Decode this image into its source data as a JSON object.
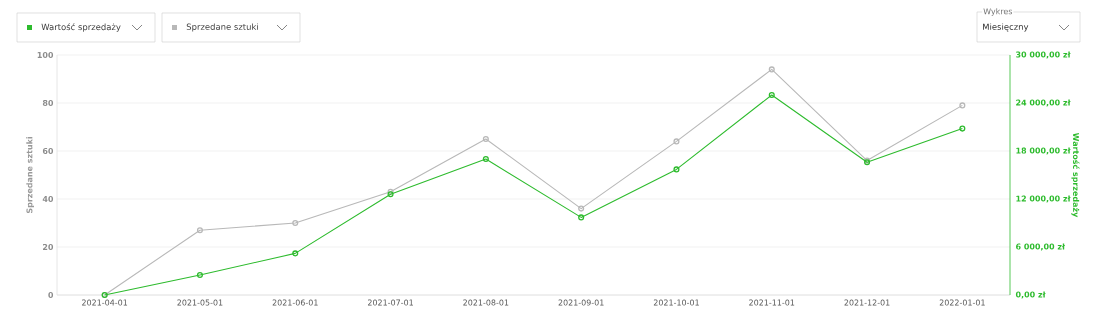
{
  "chart_data": {
    "type": "line",
    "categories": [
      "2021-04-01",
      "2021-05-01",
      "2021-06-01",
      "2021-07-01",
      "2021-08-01",
      "2021-09-01",
      "2021-10-01",
      "2021-11-01",
      "2021-12-01",
      "2022-01-01"
    ],
    "series": [
      {
        "name": "Wartość sprzedaży",
        "color": "#2dbb2d",
        "axis": "y2",
        "values": [
          0,
          2500,
          5200,
          12600,
          17000,
          9700,
          15700,
          25000,
          16600,
          20800
        ]
      },
      {
        "name": "Sprzedane sztuki",
        "color": "#b8b8b8",
        "values": [
          0,
          27,
          30,
          43,
          65,
          36,
          64,
          94,
          56,
          79
        ]
      }
    ],
    "ylabel": "Sprzedane sztuki",
    "y2label": "Wartość sprzedaży",
    "ylim": [
      0,
      100
    ],
    "yticks": [
      0,
      20,
      40,
      60,
      80,
      100
    ],
    "y2lim": [
      0,
      30000
    ],
    "y2ticks": [
      {
        "value": 0,
        "label": "0,00 zł"
      },
      {
        "value": 6000,
        "label": "6 000,00 zł"
      },
      {
        "value": 12000,
        "label": "12 000,00 zł"
      },
      {
        "value": 18000,
        "label": "18 000,00 zł"
      },
      {
        "value": 24000,
        "label": "24 000,00 zł"
      },
      {
        "value": 30000,
        "label": "30 000,00 zł"
      }
    ],
    "grid": "y",
    "legend": "top left",
    "marker": "circle",
    "line_style": "solid",
    "annotations": [
      "Wykres",
      "Miesięczny"
    ]
  }
}
